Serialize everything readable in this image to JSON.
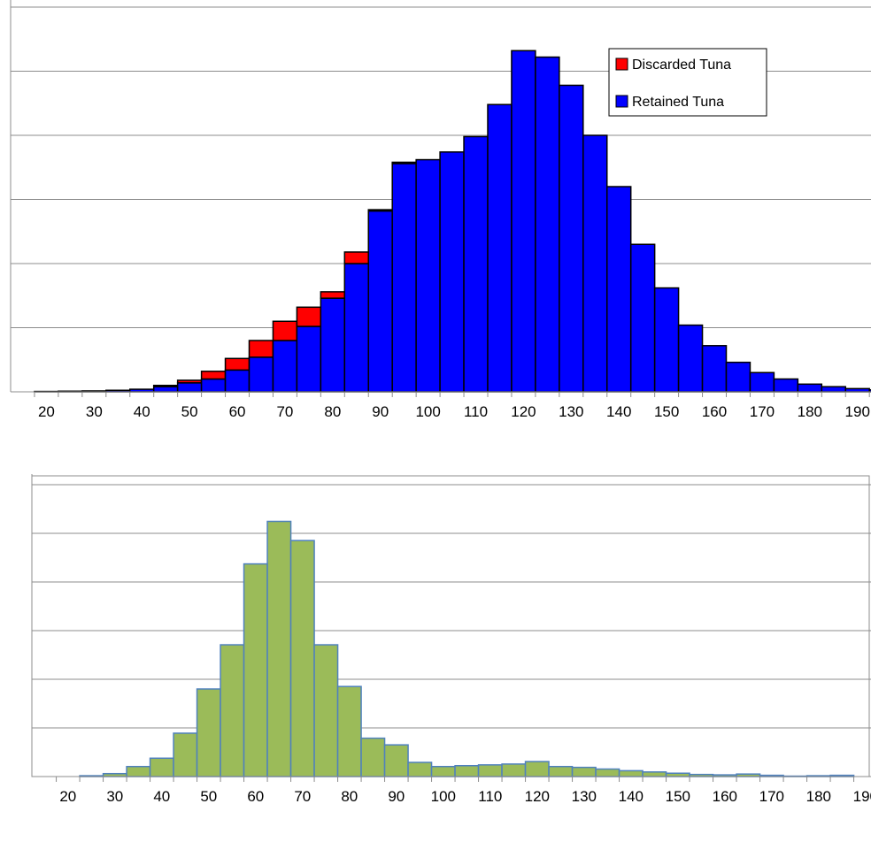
{
  "chart_data": [
    {
      "type": "bar",
      "stacked": true,
      "x_ticks": [
        20,
        30,
        40,
        50,
        60,
        70,
        80,
        90,
        100,
        110,
        120,
        130,
        140,
        150,
        160,
        170,
        180,
        190
      ],
      "bin_width": 5,
      "bin_starts": [
        20,
        25,
        30,
        35,
        40,
        45,
        50,
        55,
        60,
        65,
        70,
        75,
        80,
        85,
        90,
        95,
        100,
        105,
        110,
        115,
        120,
        125,
        130,
        135,
        140,
        145,
        150,
        155,
        160,
        165,
        170,
        175,
        180,
        185,
        190,
        195
      ],
      "grid": true,
      "legend_position": "top-right",
      "ylim": [
        0,
        30
      ],
      "series": [
        {
          "name": "Retained Tuna",
          "color": "#0000ff",
          "values": [
            0.03,
            0.05,
            0.07,
            0.12,
            0.2,
            0.4,
            0.7,
            1.0,
            1.7,
            2.7,
            4.0,
            5.1,
            7.3,
            10.0,
            14.1,
            17.8,
            18.1,
            18.7,
            19.9,
            22.4,
            26.6,
            26.1,
            23.9,
            20.0,
            16.0,
            11.5,
            8.1,
            5.2,
            3.6,
            2.3,
            1.5,
            1.0,
            0.6,
            0.4,
            0.25,
            0.15
          ]
        },
        {
          "name": "Discarded Tuna",
          "color": "#ff0000",
          "values": [
            0.0,
            0.0,
            0.0,
            0.0,
            0.0,
            0.1,
            0.2,
            0.6,
            0.9,
            1.3,
            1.5,
            1.5,
            0.5,
            0.9,
            0.1,
            0.1,
            0.0,
            0.0,
            0.0,
            0.0,
            0.0,
            0.0,
            0.0,
            0.0,
            0.0,
            0.0,
            0.0,
            0.0,
            0.0,
            0.0,
            0.0,
            0.0,
            0.0,
            0.0,
            0.0,
            0.0
          ]
        }
      ]
    },
    {
      "type": "bar",
      "x_ticks": [
        20,
        30,
        40,
        50,
        60,
        70,
        80,
        90,
        100,
        110,
        120,
        130,
        140,
        150,
        160,
        170,
        180,
        190
      ],
      "bin_width": 5,
      "bin_starts": [
        25,
        30,
        35,
        40,
        45,
        50,
        55,
        60,
        65,
        70,
        75,
        80,
        85,
        90,
        95,
        100,
        105,
        110,
        115,
        120,
        125,
        130,
        135,
        140,
        145,
        150,
        155,
        160,
        165,
        170,
        175,
        180,
        185
      ],
      "grid": true,
      "ylim": [
        0,
        35
      ],
      "series": [
        {
          "color": "#9bbb59",
          "values": [
            0.1,
            0.35,
            1.2,
            2.2,
            5.2,
            10.5,
            15.8,
            25.5,
            30.6,
            28.3,
            15.8,
            10.8,
            4.6,
            3.8,
            1.7,
            1.2,
            1.3,
            1.4,
            1.5,
            1.8,
            1.2,
            1.1,
            0.9,
            0.7,
            0.55,
            0.4,
            0.25,
            0.2,
            0.3,
            0.15,
            0.05,
            0.1,
            0.15
          ]
        }
      ]
    }
  ]
}
